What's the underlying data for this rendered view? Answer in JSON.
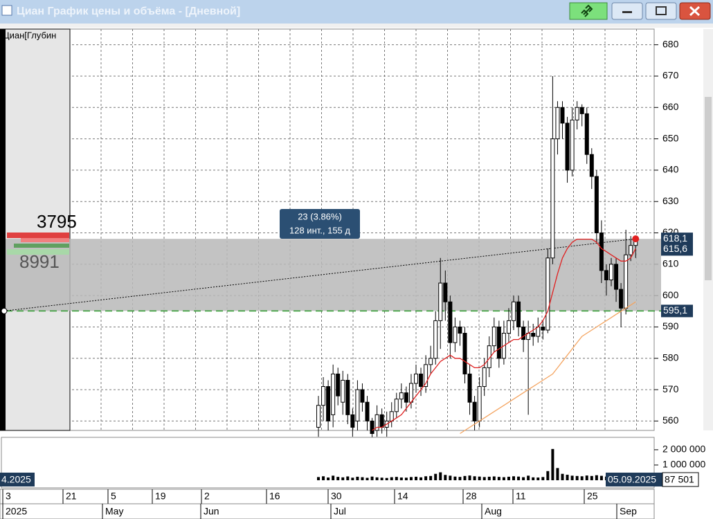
{
  "window": {
    "title": "Циан График цены и объёма - [Дневной]"
  },
  "chart_data": {
    "type": "candlestick",
    "depth_label": "Циан[Глубин",
    "depth_bid": 3795,
    "depth_ask": 8991,
    "candle_colors": {
      "up": "#ffffff",
      "down": "#000000"
    },
    "open": [
      558,
      565,
      571,
      562,
      575,
      566,
      573,
      562,
      560,
      570,
      566,
      560,
      557,
      562,
      558,
      560,
      563,
      567,
      569,
      566,
      572,
      575,
      571,
      578,
      580,
      592,
      604,
      598,
      585,
      590,
      588,
      575,
      566,
      560,
      571,
      577,
      584,
      590,
      580,
      588,
      592,
      598,
      590,
      586,
      588,
      587,
      590,
      589,
      612,
      650,
      660,
      655,
      640,
      656,
      660,
      658,
      645,
      638,
      620,
      608,
      605,
      610,
      602,
      596,
      613,
      616
    ],
    "high": [
      568,
      574,
      573,
      578,
      577,
      576,
      575,
      564,
      573,
      572,
      568,
      561,
      565,
      564,
      563,
      566,
      569,
      572,
      571,
      575,
      578,
      577,
      581,
      584,
      595,
      612,
      608,
      600,
      593,
      592,
      590,
      578,
      568,
      574,
      580,
      587,
      593,
      592,
      592,
      596,
      600,
      600,
      592,
      592,
      591,
      593,
      592,
      615,
      670,
      662,
      662,
      657,
      660,
      662,
      661,
      660,
      647,
      640,
      624,
      610,
      612,
      612,
      604,
      621,
      619,
      619
    ],
    "low": [
      555,
      560,
      557,
      558,
      565,
      562,
      559,
      555,
      557,
      563,
      557,
      554,
      555,
      556,
      555,
      558,
      561,
      564,
      563,
      564,
      569,
      568,
      569,
      575,
      578,
      583,
      592,
      580,
      582,
      584,
      572,
      562,
      557,
      558,
      568,
      574,
      582,
      577,
      578,
      585,
      589,
      587,
      582,
      562,
      584,
      585,
      586,
      588,
      610,
      645,
      650,
      636,
      638,
      653,
      654,
      642,
      634,
      617,
      604,
      600,
      603,
      598,
      590,
      594,
      611,
      612
    ],
    "close": [
      565,
      571,
      560,
      575,
      568,
      573,
      562,
      558,
      570,
      566,
      560,
      556,
      562,
      558,
      560,
      563,
      567,
      569,
      566,
      572,
      575,
      571,
      578,
      580,
      592,
      604,
      598,
      585,
      590,
      588,
      575,
      566,
      560,
      571,
      577,
      584,
      590,
      580,
      588,
      592,
      598,
      590,
      586,
      588,
      587,
      590,
      589,
      612,
      650,
      660,
      655,
      640,
      656,
      660,
      658,
      645,
      638,
      620,
      608,
      605,
      610,
      602,
      596,
      613,
      616,
      618
    ],
    "series": [
      {
        "color": "#e02020",
        "values": [
          null,
          null,
          null,
          null,
          null,
          null,
          null,
          null,
          null,
          null,
          null,
          557,
          558,
          558,
          559,
          560,
          561,
          562,
          564,
          566,
          568,
          570,
          572,
          575,
          577,
          579,
          580,
          581,
          580,
          580,
          579,
          578,
          577,
          577,
          578,
          580,
          582,
          583,
          584,
          585,
          586,
          586,
          587,
          588,
          589,
          590,
          592,
          595,
          601,
          607,
          612,
          615,
          617,
          618,
          618,
          618,
          618,
          617,
          615,
          614,
          613,
          612,
          611,
          611,
          612,
          615
        ]
      },
      {
        "color": "#f4a460",
        "values": [
          null,
          null,
          null,
          null,
          null,
          null,
          null,
          null,
          null,
          null,
          null,
          null,
          null,
          null,
          null,
          null,
          null,
          null,
          null,
          null,
          null,
          null,
          null,
          null,
          null,
          null,
          null,
          null,
          null,
          556,
          557,
          558,
          559,
          560,
          561,
          562,
          563,
          564,
          565,
          566,
          567,
          568,
          569,
          570,
          571,
          572,
          573,
          574,
          575,
          577,
          579,
          581,
          583,
          585,
          587,
          588,
          589,
          590,
          591,
          592,
          593,
          594,
          595,
          596,
          597,
          598
        ]
      }
    ],
    "ylim": [
      557,
      685
    ],
    "yticks": [
      560,
      570,
      580,
      590,
      600,
      610,
      620,
      630,
      640,
      650,
      660,
      670,
      680
    ],
    "grid": true,
    "price_labels": [
      {
        "value": 618.1,
        "label": "618,1"
      },
      {
        "value": 615.6,
        "label": "615,6"
      },
      {
        "value": 595.1,
        "label": "595,1"
      }
    ],
    "measure": {
      "line1": "23 (3.86%)",
      "line2": "128 инт., 155 д"
    },
    "x_day_labels": [
      "3",
      "21",
      "5",
      "19",
      "2",
      "16",
      "30",
      "14",
      "28",
      "11",
      "25"
    ],
    "x_month_labels": [
      "2025",
      "May",
      "Jun",
      "Jul",
      "Aug",
      "Sep"
    ],
    "date_start": "4.2025",
    "date_end": "05.09.2025",
    "volume": {
      "values": [
        210000,
        260000,
        180000,
        300000,
        220000,
        190000,
        250000,
        170000,
        230000,
        200000,
        160000,
        240000,
        190000,
        170000,
        150000,
        200000,
        220000,
        180000,
        170000,
        210000,
        230000,
        190000,
        260000,
        280000,
        420000,
        520000,
        350000,
        300000,
        240000,
        220000,
        280000,
        310000,
        260000,
        240000,
        210000,
        230000,
        250000,
        220000,
        200000,
        230000,
        260000,
        240000,
        200000,
        300000,
        190000,
        180000,
        210000,
        600000,
        2050000,
        800000,
        420000,
        360000,
        300000,
        280000,
        260000,
        310000,
        280000,
        330000,
        290000,
        240000,
        220000,
        260000,
        300000,
        280000,
        200000,
        87501
      ],
      "ylim": [
        0,
        2450000
      ],
      "yticks": [
        {
          "value": 2000000,
          "label": "2 000 000"
        },
        {
          "value": 1000000,
          "label": "1 000 000"
        }
      ],
      "last": {
        "value": 87501,
        "label": "87 501"
      }
    }
  }
}
